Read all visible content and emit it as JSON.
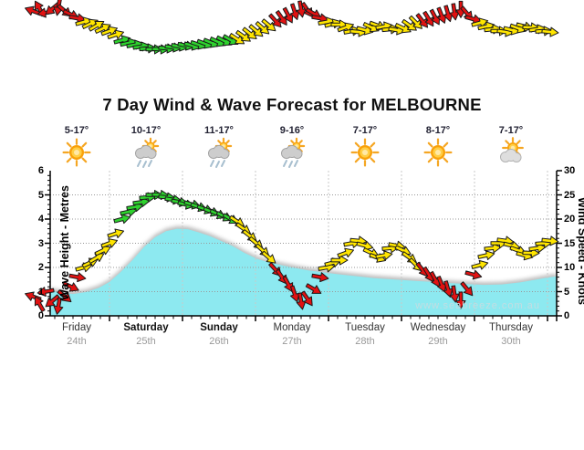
{
  "title": "7 Day Wind & Wave Forecast for MELBOURNE",
  "watermark": "www.seabreeze.com.au",
  "axes": {
    "left_title": "Wave Height - Metres",
    "right_title": "Wind Speed - Knots",
    "left_ticks": [
      "0",
      "1",
      "2",
      "3",
      "4",
      "5",
      "6"
    ],
    "right_ticks": [
      "0",
      "5",
      "10",
      "15",
      "20",
      "25",
      "30"
    ]
  },
  "days": [
    {
      "label": "Friday",
      "date": "24th",
      "temp": "5-17°",
      "icon": "sunny",
      "bold": false
    },
    {
      "label": "Saturday",
      "date": "25th",
      "temp": "10-17°",
      "icon": "sun-showers",
      "bold": true
    },
    {
      "label": "Sunday",
      "date": "26th",
      "temp": "11-17°",
      "icon": "sun-showers",
      "bold": true
    },
    {
      "label": "Monday",
      "date": "27th",
      "temp": "9-16°",
      "icon": "sun-showers",
      "bold": false
    },
    {
      "label": "Tuesday",
      "date": "28th",
      "temp": "7-17°",
      "icon": "sunny",
      "bold": false
    },
    {
      "label": "Wednesday",
      "date": "29th",
      "temp": "8-17°",
      "icon": "sunny",
      "bold": false
    },
    {
      "label": "Thursday",
      "date": "30th",
      "temp": "7-17°",
      "icon": "sun-cloud",
      "bold": false
    }
  ],
  "colors": {
    "wind_light": "#e11212",
    "wind_moderate": "#ffe500",
    "wind_fresh": "#2ed22e",
    "arrow_outline": "#1a1a1a",
    "wave_fill": "#8de9f0",
    "grid_vertical": "#c9c9c9",
    "grid_horizontal": "#999999",
    "axis": "#000000"
  },
  "chart_data": {
    "type": "area+wind-arrows",
    "x_unit": "hours from Friday 00:00",
    "categories": [
      "Friday 24th",
      "Saturday 25th",
      "Sunday 26th",
      "Monday 27th",
      "Tuesday 28th",
      "Wednesday 29th",
      "Thursday 30th"
    ],
    "left_axis": {
      "label": "Wave Height - Metres",
      "range": [
        0,
        6
      ]
    },
    "right_axis": {
      "label": "Wind Speed - Knots",
      "range": [
        0,
        30
      ]
    },
    "wind_color_thresholds_kt": {
      "red_below": 10,
      "yellow_below": 20,
      "green_at_or_above": 20
    },
    "wave_series": {
      "name": "Wave Height (m)",
      "hours": [
        4.5,
        8.4,
        12,
        16.2,
        20.4,
        24,
        27.6,
        31.5,
        35.4,
        39,
        42.6,
        46.2,
        49.8,
        53.4,
        57,
        60.6,
        64.2,
        68.4,
        72.6,
        76.8,
        81,
        85.2,
        89.4,
        93.9,
        99,
        105,
        111,
        117.9,
        124.5,
        130.5,
        136.5,
        141.9,
        147,
        153,
        159,
        163.5,
        168,
        171
      ],
      "heights_m": [
        1.05,
        0.95,
        0.9,
        0.98,
        1.15,
        1.4,
        1.8,
        2.3,
        2.85,
        3.25,
        3.5,
        3.6,
        3.58,
        3.45,
        3.3,
        3.1,
        2.9,
        2.6,
        2.35,
        2.2,
        2.08,
        1.97,
        1.88,
        1.8,
        1.72,
        1.64,
        1.56,
        1.5,
        1.44,
        1.4,
        1.35,
        1.31,
        1.28,
        1.3,
        1.38,
        1.48,
        1.58,
        1.63
      ]
    },
    "wind_series": {
      "name": "Wind Speed (kt) with direction arrows",
      "start_hour": -1.2,
      "step_hours": 2.1,
      "speeds_kt": [
        4,
        2.5,
        5,
        3,
        2,
        4,
        6,
        8,
        10,
        11,
        12,
        13.5,
        15,
        17,
        20,
        21.5,
        22.5,
        23.5,
        24.5,
        25,
        25,
        24.5,
        24,
        23.5,
        23,
        23,
        22.5,
        22,
        21.5,
        21,
        20.5,
        20,
        19.5,
        18,
        16.5,
        15,
        13.5,
        12,
        9.5,
        8,
        6.5,
        4.5,
        3,
        3.5,
        5.5,
        8,
        10,
        11,
        11.5,
        13,
        15,
        15.5,
        14.5,
        13,
        12,
        12.5,
        14,
        14.5,
        13.5,
        12,
        10.5,
        9.5,
        8.5,
        7.5,
        6.5,
        5.5,
        4.5,
        3.2,
        5.5,
        8.5,
        10.5,
        12.5,
        14,
        15,
        15.5,
        14.5,
        13.5,
        12.5,
        13,
        14,
        15,
        15.5
      ],
      "angles_deg": [
        -160,
        -120,
        170,
        140,
        100,
        40,
        25,
        10,
        -15,
        -25,
        -30,
        -25,
        -20,
        -18,
        -15,
        -12,
        -10,
        -8,
        -5,
        0,
        3,
        5,
        8,
        10,
        12,
        15,
        18,
        20,
        22,
        25,
        27,
        30,
        33,
        35,
        38,
        40,
        42,
        40,
        48,
        55,
        62,
        72,
        80,
        55,
        30,
        10,
        -10,
        -15,
        0,
        -20,
        -10,
        5,
        15,
        25,
        20,
        -10,
        -5,
        10,
        25,
        35,
        45,
        52,
        58,
        62,
        68,
        74,
        82,
        90,
        50,
        15,
        -15,
        -12,
        -6,
        0,
        8,
        14,
        20,
        15,
        2,
        -8,
        -4,
        6
      ]
    }
  }
}
